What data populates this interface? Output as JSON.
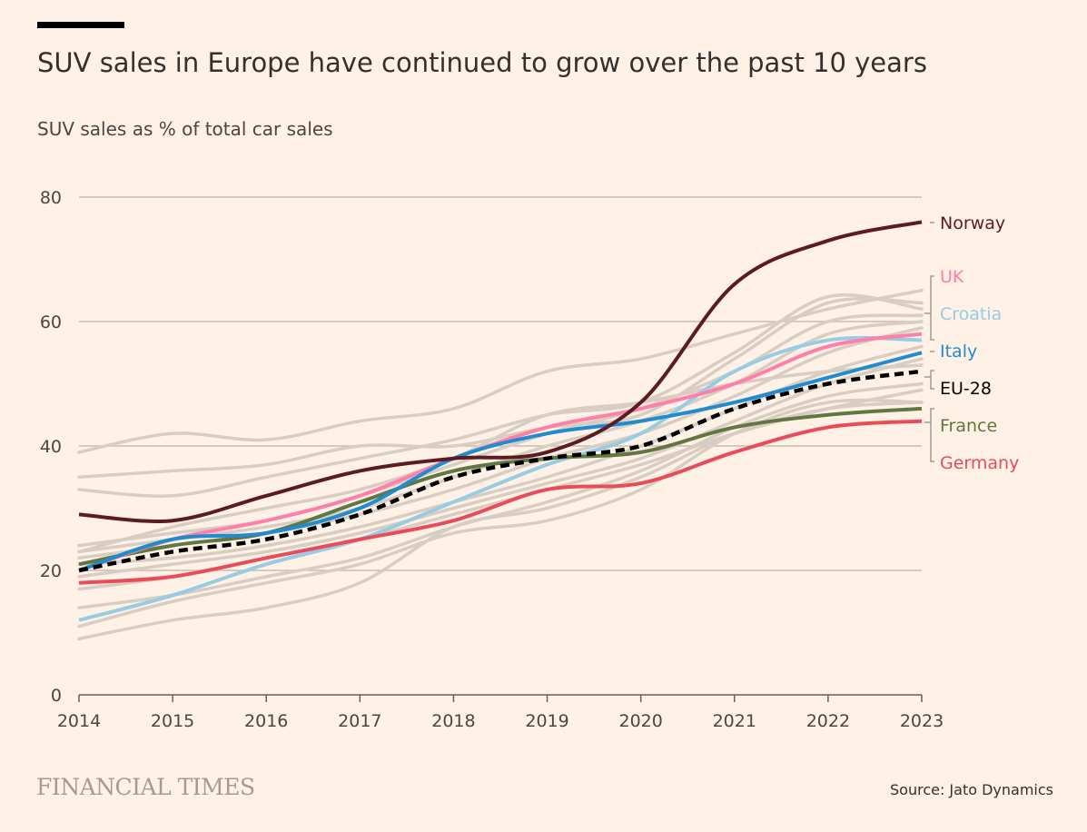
{
  "header": {
    "title": "SUV sales in Europe have continued to grow over the past 10 years",
    "subtitle": "SUV sales as % of total car sales"
  },
  "footer": {
    "logo": "FINANCIAL TIMES",
    "source": "Source: Jato Dynamics"
  },
  "chart_data": {
    "type": "line",
    "title": "SUV sales in Europe have continued to grow over the past 10 years",
    "ylabel": "SUV sales as % of total car sales",
    "x": [
      2014,
      2015,
      2016,
      2017,
      2018,
      2019,
      2020,
      2021,
      2022,
      2023
    ],
    "xlim": [
      2014,
      2023
    ],
    "ylim": [
      0,
      80
    ],
    "yticks": [
      0,
      20,
      40,
      60,
      80
    ],
    "xticks": [
      "2014",
      "2015",
      "2016",
      "2017",
      "2018",
      "2019",
      "2020",
      "2021",
      "2022",
      "2023"
    ],
    "grid": true,
    "legend": "direct labels at right",
    "series": [
      {
        "name": "Norway",
        "color": "#5c1b22",
        "values": [
          29,
          28,
          32,
          36,
          38,
          39,
          47,
          66,
          73,
          76
        ]
      },
      {
        "name": "UK",
        "color": "#ff7faa",
        "values": [
          20,
          25,
          28,
          32,
          38,
          43,
          46,
          50,
          56,
          58
        ]
      },
      {
        "name": "Croatia",
        "color": "#96cce4",
        "values": [
          12,
          16,
          21,
          25,
          31,
          37,
          42,
          52,
          57,
          57
        ]
      },
      {
        "name": "Italy",
        "color": "#1f8ccf",
        "values": [
          20,
          25,
          26,
          30,
          38,
          42,
          44,
          47,
          51,
          55
        ]
      },
      {
        "name": "EU-28",
        "color": "#000000",
        "dashed": true,
        "values": [
          20,
          23,
          25,
          29,
          35,
          38,
          40,
          46,
          50,
          52
        ]
      },
      {
        "name": "France",
        "color": "#5f7741",
        "values": [
          21,
          24,
          26,
          31,
          36,
          38,
          39,
          43,
          45,
          46
        ]
      },
      {
        "name": "Germany",
        "color": "#ea4b5a",
        "values": [
          18,
          19,
          22,
          25,
          28,
          33,
          34,
          39,
          43,
          44
        ]
      }
    ],
    "background_series_color": "#d8cdc2",
    "background_series": [
      [
        39,
        42,
        41,
        44,
        46,
        52,
        54,
        58,
        62,
        65
      ],
      [
        35,
        36,
        37,
        40,
        40,
        43,
        45,
        54,
        63,
        63
      ],
      [
        33,
        32,
        35,
        38,
        41,
        45,
        47,
        55,
        64,
        62
      ],
      [
        24,
        26,
        28,
        32,
        37,
        42,
        46,
        52,
        60,
        61
      ],
      [
        23,
        25,
        27,
        30,
        35,
        40,
        44,
        50,
        58,
        60
      ],
      [
        22,
        24,
        26,
        29,
        33,
        38,
        42,
        48,
        55,
        59
      ],
      [
        21,
        22,
        24,
        27,
        31,
        35,
        40,
        46,
        52,
        56
      ],
      [
        19,
        21,
        23,
        26,
        30,
        34,
        38,
        44,
        50,
        54
      ],
      [
        14,
        16,
        19,
        22,
        27,
        31,
        36,
        43,
        48,
        50
      ],
      [
        11,
        15,
        18,
        21,
        26,
        28,
        33,
        42,
        47,
        47
      ],
      [
        9,
        12,
        14,
        18,
        27,
        30,
        35,
        42,
        46,
        47
      ],
      [
        17,
        19,
        22,
        25,
        29,
        33,
        37,
        42,
        46,
        49
      ],
      [
        23,
        27,
        30,
        33,
        38,
        45,
        47,
        50,
        52,
        53
      ]
    ]
  }
}
